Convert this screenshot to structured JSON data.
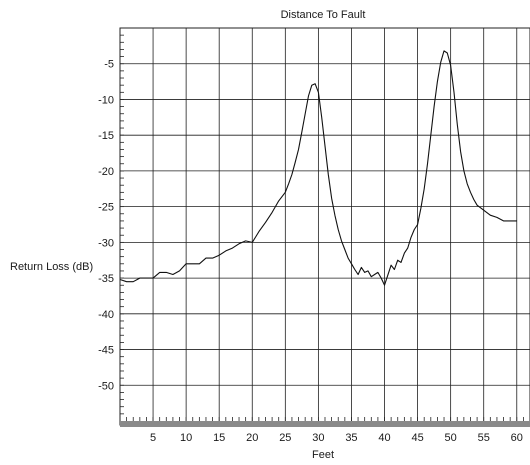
{
  "chart_data": {
    "type": "line",
    "title": "Distance To Fault",
    "xlabel": "Feet",
    "ylabel": "Return Loss (dB)",
    "xlim": [
      0,
      62
    ],
    "ylim": [
      -55,
      0
    ],
    "grid": true,
    "x_ticks": [
      5,
      10,
      15,
      20,
      25,
      30,
      35,
      40,
      45,
      50,
      55,
      60
    ],
    "x_tick_labels": [
      "5",
      "10",
      "15",
      "20",
      "25",
      "30",
      "35",
      "40",
      "45",
      "50",
      "55",
      "60"
    ],
    "y_ticks": [
      -5,
      -10,
      -15,
      -20,
      -25,
      -30,
      -35,
      -40,
      -45,
      -50
    ],
    "y_tick_labels": [
      "-5",
      "-10",
      "-15",
      "-20",
      "-25",
      "-30",
      "-35",
      "-40",
      "-45",
      "-50"
    ],
    "series": [
      {
        "x": [
          0,
          1,
          2,
          3,
          4,
          5,
          6,
          7,
          8,
          9,
          10,
          11,
          12,
          13,
          14,
          15,
          16,
          17,
          18,
          19,
          20,
          21,
          22,
          23,
          24,
          25,
          25.5,
          26,
          26.5,
          27,
          27.5,
          28,
          28.5,
          29,
          29.5,
          30,
          30.5,
          31,
          31.5,
          32,
          32.5,
          33,
          33.5,
          34,
          34.5,
          35,
          35.5,
          36,
          36.5,
          37,
          37.5,
          38,
          38.5,
          39,
          39.5,
          40,
          40.5,
          41,
          41.5,
          42,
          42.5,
          43,
          43.5,
          44,
          44.5,
          45,
          45.5,
          46,
          46.5,
          47,
          47.5,
          48,
          48.5,
          49,
          49.5,
          50,
          50.5,
          51,
          51.5,
          52,
          52.5,
          53,
          53.5,
          54,
          55,
          56,
          57,
          58,
          59,
          60
        ],
        "y": [
          -35.2,
          -35.5,
          -35.5,
          -35,
          -35,
          -35,
          -34.2,
          -34.2,
          -34.5,
          -34,
          -33,
          -33,
          -33,
          -32.2,
          -32.2,
          -31.8,
          -31.2,
          -30.8,
          -30.2,
          -29.8,
          -30,
          -28.5,
          -27.2,
          -25.8,
          -24.2,
          -23,
          -21.8,
          -20.5,
          -18.8,
          -17,
          -14.5,
          -12,
          -9.5,
          -8,
          -7.8,
          -9,
          -12.5,
          -16.5,
          -20.5,
          -23.8,
          -26.2,
          -28.2,
          -29.8,
          -31,
          -32.2,
          -33,
          -33.8,
          -34.5,
          -33.5,
          -34.2,
          -34,
          -34.8,
          -34.5,
          -34.2,
          -35,
          -36,
          -34.6,
          -33.2,
          -33.8,
          -32.5,
          -32.8,
          -31.5,
          -30.8,
          -29.3,
          -28.2,
          -27.5,
          -25.2,
          -22.5,
          -19,
          -15,
          -11,
          -7.5,
          -4.8,
          -3.2,
          -3.5,
          -5.2,
          -9,
          -13.5,
          -17.3,
          -20,
          -21.8,
          -23,
          -24,
          -24.8,
          -25.5,
          -26.2,
          -26.5,
          -27,
          -27,
          -27
        ]
      }
    ]
  }
}
